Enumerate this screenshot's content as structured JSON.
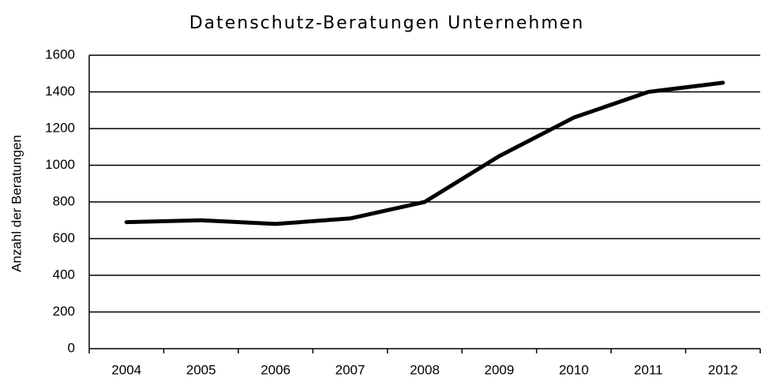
{
  "chart_data": {
    "type": "line",
    "title": "Datenschutz-Beratungen Unternehmen",
    "y_label": "Anzahl der Beratungen",
    "categories": [
      "2004",
      "2005",
      "2006",
      "2007",
      "2008",
      "2009",
      "2010",
      "2011",
      "2012"
    ],
    "values": [
      690,
      700,
      680,
      710,
      800,
      1050,
      1260,
      1400,
      1450
    ],
    "color": "#000000",
    "ylim": [
      0,
      1600
    ],
    "yticks": [
      0,
      200,
      400,
      600,
      800,
      1000,
      1200,
      1400,
      1600
    ],
    "grid": true
  }
}
